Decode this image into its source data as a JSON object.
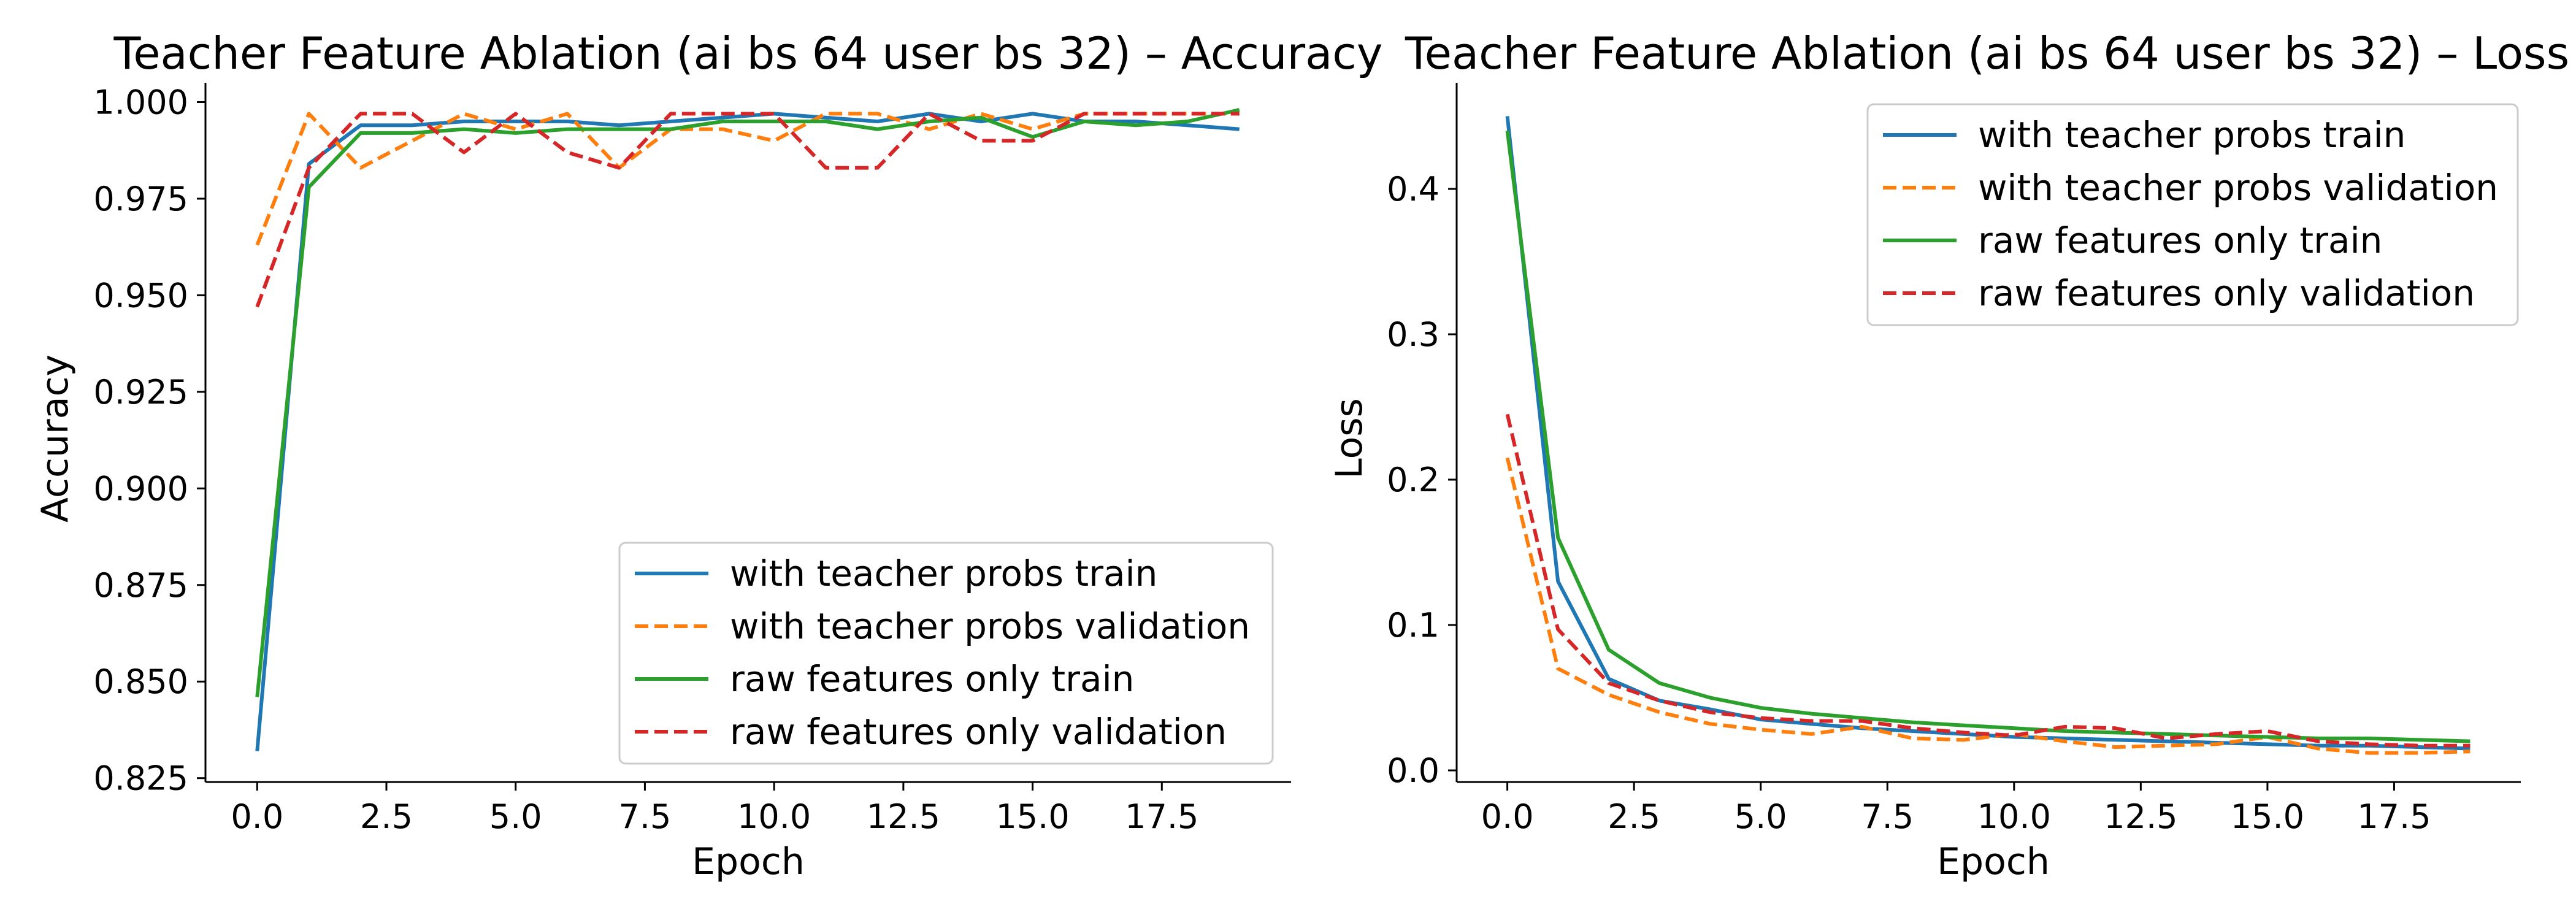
{
  "chart_data": [
    {
      "type": "line",
      "title": "Teacher Feature Ablation (ai bs 64 user bs 32) – Accuracy",
      "xlabel": "Epoch",
      "ylabel": "Accuracy",
      "xlim": [
        -1,
        20
      ],
      "ylim": [
        0.824,
        1.005
      ],
      "xticks": [
        "0.0",
        "2.5",
        "5.0",
        "7.5",
        "10.0",
        "12.5",
        "15.0",
        "17.5"
      ],
      "yticks": [
        "0.825",
        "0.850",
        "0.875",
        "0.900",
        "0.925",
        "0.950",
        "0.975",
        "1.000"
      ],
      "grid": false,
      "legend_position": "lower-right",
      "x": [
        0,
        1,
        2,
        3,
        4,
        5,
        6,
        7,
        8,
        9,
        10,
        11,
        12,
        13,
        14,
        15,
        16,
        17,
        18,
        19
      ],
      "series": [
        {
          "name": "with teacher probs train",
          "color": "#1f77b4",
          "dash": "solid",
          "values": [
            0.832,
            0.984,
            0.994,
            0.994,
            0.995,
            0.995,
            0.995,
            0.994,
            0.995,
            0.996,
            0.997,
            0.996,
            0.995,
            0.997,
            0.995,
            0.997,
            0.995,
            0.995,
            0.994,
            0.993
          ]
        },
        {
          "name": "with teacher probs validation",
          "color": "#ff7f0e",
          "dash": "dashed",
          "values": [
            0.963,
            0.997,
            0.983,
            0.99,
            0.997,
            0.993,
            0.997,
            0.983,
            0.993,
            0.993,
            0.99,
            0.997,
            0.997,
            0.993,
            0.997,
            0.993,
            0.997,
            0.997,
            0.997,
            0.997
          ]
        },
        {
          "name": "raw features only train",
          "color": "#2ca02c",
          "dash": "solid",
          "values": [
            0.846,
            0.978,
            0.992,
            0.992,
            0.993,
            0.992,
            0.993,
            0.993,
            0.993,
            0.995,
            0.995,
            0.995,
            0.993,
            0.995,
            0.996,
            0.991,
            0.995,
            0.994,
            0.995,
            0.998
          ]
        },
        {
          "name": "raw features only validation",
          "color": "#d62728",
          "dash": "dashed",
          "values": [
            0.947,
            0.983,
            0.997,
            0.997,
            0.987,
            0.997,
            0.987,
            0.983,
            0.997,
            0.997,
            0.997,
            0.983,
            0.983,
            0.997,
            0.99,
            0.99,
            0.997,
            0.997,
            0.997,
            0.997
          ]
        }
      ]
    },
    {
      "type": "line",
      "title": "Teacher Feature Ablation (ai bs 64 user bs 32) – Loss",
      "xlabel": "Epoch",
      "ylabel": "Loss",
      "xlim": [
        -1,
        20
      ],
      "ylim": [
        -0.008,
        0.473
      ],
      "xticks": [
        "0.0",
        "2.5",
        "5.0",
        "7.5",
        "10.0",
        "12.5",
        "15.0",
        "17.5"
      ],
      "yticks": [
        "0.0",
        "0.1",
        "0.2",
        "0.3",
        "0.4"
      ],
      "grid": false,
      "legend_position": "upper-right",
      "x": [
        0,
        1,
        2,
        3,
        4,
        5,
        6,
        7,
        8,
        9,
        10,
        11,
        12,
        13,
        14,
        15,
        16,
        17,
        18,
        19
      ],
      "series": [
        {
          "name": "with teacher probs train",
          "color": "#1f77b4",
          "dash": "solid",
          "values": [
            0.45,
            0.13,
            0.063,
            0.048,
            0.042,
            0.035,
            0.032,
            0.029,
            0.027,
            0.025,
            0.023,
            0.022,
            0.021,
            0.02,
            0.019,
            0.018,
            0.017,
            0.017,
            0.016,
            0.015
          ]
        },
        {
          "name": "with teacher probs validation",
          "color": "#ff7f0e",
          "dash": "dashed",
          "values": [
            0.215,
            0.07,
            0.052,
            0.04,
            0.032,
            0.028,
            0.025,
            0.03,
            0.022,
            0.021,
            0.025,
            0.02,
            0.016,
            0.017,
            0.018,
            0.023,
            0.015,
            0.012,
            0.012,
            0.013
          ]
        },
        {
          "name": "raw features only train",
          "color": "#2ca02c",
          "dash": "solid",
          "values": [
            0.44,
            0.16,
            0.083,
            0.06,
            0.05,
            0.043,
            0.039,
            0.036,
            0.033,
            0.031,
            0.029,
            0.027,
            0.026,
            0.025,
            0.024,
            0.023,
            0.022,
            0.022,
            0.021,
            0.02
          ]
        },
        {
          "name": "raw features only validation",
          "color": "#d62728",
          "dash": "dashed",
          "values": [
            0.245,
            0.097,
            0.06,
            0.048,
            0.04,
            0.036,
            0.034,
            0.034,
            0.029,
            0.026,
            0.024,
            0.03,
            0.029,
            0.022,
            0.025,
            0.027,
            0.02,
            0.018,
            0.017,
            0.017
          ]
        }
      ]
    }
  ]
}
